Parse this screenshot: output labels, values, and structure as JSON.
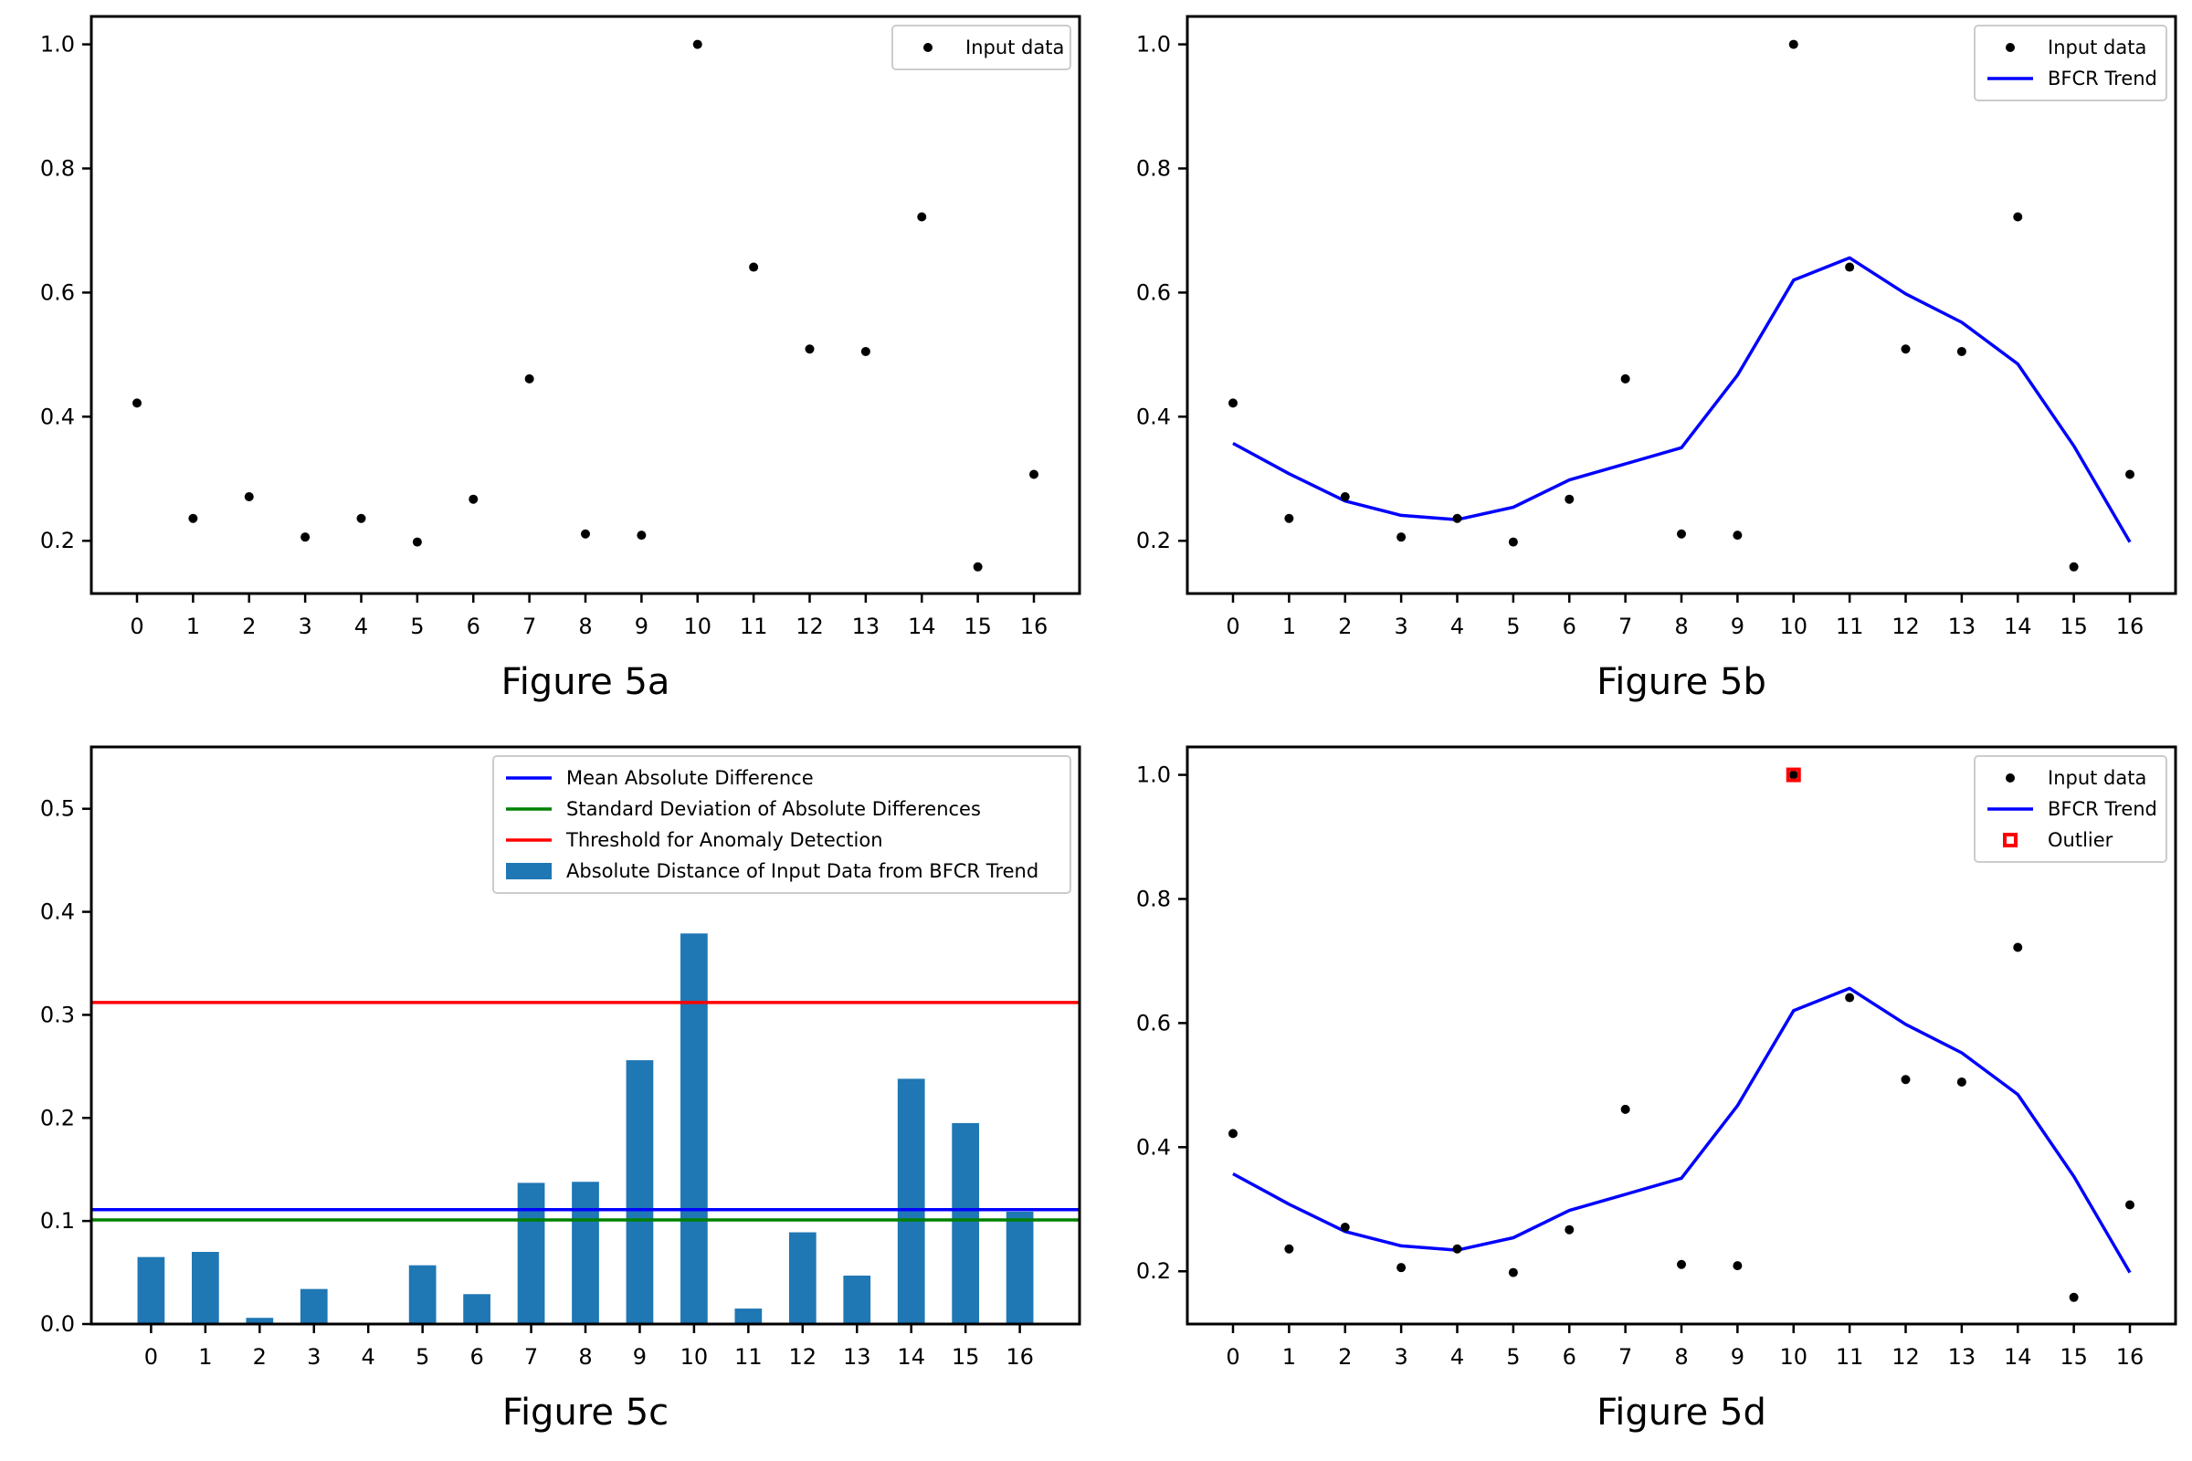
{
  "chart_data": [
    {
      "id": "5a",
      "type": "scatter",
      "caption": "Figure 5a",
      "x": [
        0,
        1,
        2,
        3,
        4,
        5,
        6,
        7,
        8,
        9,
        10,
        11,
        12,
        13,
        14,
        15,
        16
      ],
      "series": [
        {
          "name": "Input data",
          "kind": "points",
          "color": "#000000",
          "values": [
            0.422,
            0.236,
            0.271,
            0.206,
            0.236,
            0.198,
            0.267,
            0.461,
            0.211,
            0.209,
            1.0,
            0.641,
            0.509,
            0.505,
            0.722,
            0.158,
            0.307
          ]
        }
      ],
      "ylim": [
        0.115,
        1.045
      ],
      "yticks": [
        0.2,
        0.4,
        0.6,
        0.8,
        1.0
      ],
      "grid": false,
      "legend": "top-right"
    },
    {
      "id": "5b",
      "type": "scatter",
      "caption": "Figure 5b",
      "x": [
        0,
        1,
        2,
        3,
        4,
        5,
        6,
        7,
        8,
        9,
        10,
        11,
        12,
        13,
        14,
        15,
        16
      ],
      "series": [
        {
          "name": "Input data",
          "kind": "points",
          "color": "#000000",
          "values": [
            0.422,
            0.236,
            0.271,
            0.206,
            0.236,
            0.198,
            0.267,
            0.461,
            0.211,
            0.209,
            1.0,
            0.641,
            0.509,
            0.505,
            0.722,
            0.158,
            0.307
          ]
        },
        {
          "name": "BFCR Trend",
          "kind": "line",
          "color": "#0000ff",
          "values": [
            0.357,
            0.308,
            0.264,
            0.241,
            0.234,
            0.254,
            0.298,
            0.324,
            0.35,
            0.467,
            0.62,
            0.656,
            0.598,
            0.552,
            0.485,
            0.353,
            0.198
          ]
        }
      ],
      "ylim": [
        0.115,
        1.045
      ],
      "yticks": [
        0.2,
        0.4,
        0.6,
        0.8,
        1.0
      ],
      "grid": false,
      "legend": "top-right"
    },
    {
      "id": "5c",
      "type": "bar",
      "caption": "Figure 5c",
      "categories": [
        "0",
        "1",
        "2",
        "3",
        "4",
        "5",
        "6",
        "7",
        "8",
        "9",
        "10",
        "11",
        "12",
        "13",
        "14",
        "15",
        "16"
      ],
      "values": [
        0.065,
        0.07,
        0.006,
        0.034,
        0.0,
        0.057,
        0.029,
        0.137,
        0.138,
        0.256,
        0.379,
        0.015,
        0.089,
        0.047,
        0.238,
        0.195,
        0.109
      ],
      "bar_name": "Absolute Distance of Input Data from BFCR Trend",
      "bar_color": "#1f77b4",
      "hlines": [
        {
          "name": "Mean Absolute Difference",
          "value": 0.111,
          "color": "#0000ff"
        },
        {
          "name": "Standard Deviation of Absolute Differences",
          "value": 0.101,
          "color": "#008000"
        },
        {
          "name": "Threshold for Anomaly Detection",
          "value": 0.312,
          "color": "#ff0000"
        }
      ],
      "ylim": [
        0.0,
        0.56
      ],
      "yticks": [
        0.0,
        0.1,
        0.2,
        0.3,
        0.4,
        0.5
      ],
      "grid": false,
      "legend": "top-right"
    },
    {
      "id": "5d",
      "type": "scatter",
      "caption": "Figure 5d",
      "x": [
        0,
        1,
        2,
        3,
        4,
        5,
        6,
        7,
        8,
        9,
        10,
        11,
        12,
        13,
        14,
        15,
        16
      ],
      "series": [
        {
          "name": "Input data",
          "kind": "points",
          "color": "#000000",
          "values": [
            0.422,
            0.236,
            0.271,
            0.206,
            0.236,
            0.198,
            0.267,
            0.461,
            0.211,
            0.209,
            1.0,
            0.641,
            0.509,
            0.505,
            0.722,
            0.158,
            0.307
          ]
        },
        {
          "name": "BFCR Trend",
          "kind": "line",
          "color": "#0000ff",
          "values": [
            0.357,
            0.308,
            0.264,
            0.241,
            0.234,
            0.254,
            0.298,
            0.324,
            0.35,
            0.467,
            0.62,
            0.656,
            0.598,
            0.552,
            0.485,
            0.353,
            0.198
          ]
        },
        {
          "name": "Outlier",
          "kind": "outlier",
          "color": "#ff0000",
          "points": [
            {
              "x": 10,
              "y": 1.0
            }
          ]
        }
      ],
      "ylim": [
        0.115,
        1.045
      ],
      "yticks": [
        0.2,
        0.4,
        0.6,
        0.8,
        1.0
      ],
      "grid": false,
      "legend": "top-right"
    }
  ]
}
